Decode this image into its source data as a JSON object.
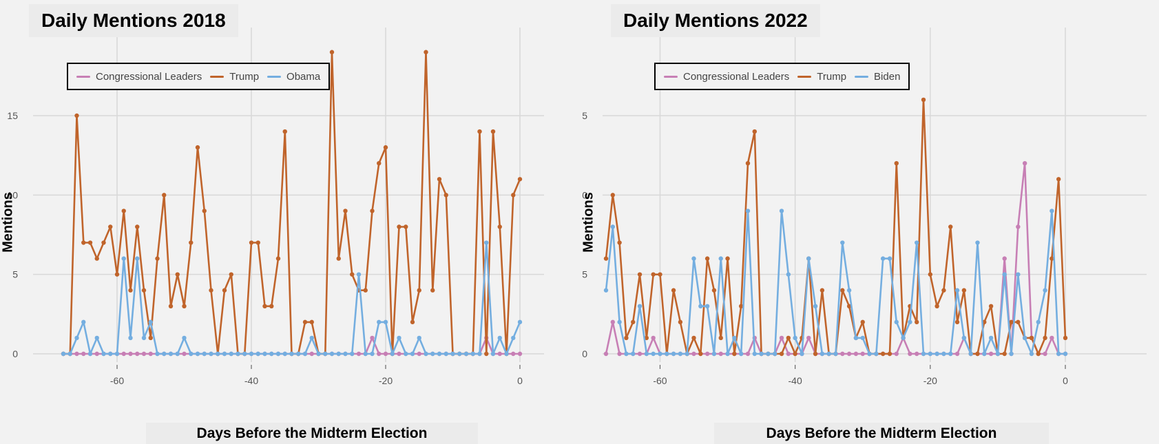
{
  "colors": {
    "congress": "#c77fb5",
    "trump": "#c0642b",
    "other": "#74aee0",
    "grid": "#d8d8d8"
  },
  "chart_data": [
    {
      "type": "line",
      "title": "Daily Mentions 2018",
      "xlabel": "Days Before the Midterm Election",
      "ylabel": "Mentions",
      "xlim": [
        -68,
        0
      ],
      "ylim": [
        0,
        19
      ],
      "xticks": [
        -60,
        -40,
        -20,
        0
      ],
      "yticks": [
        0,
        5,
        10,
        15
      ],
      "legend_position": "top-left",
      "x": [
        -68,
        -67,
        -66,
        -65,
        -64,
        -63,
        -62,
        -61,
        -60,
        -59,
        -58,
        -57,
        -56,
        -55,
        -54,
        -53,
        -52,
        -51,
        -50,
        -49,
        -48,
        -47,
        -46,
        -45,
        -44,
        -43,
        -42,
        -41,
        -40,
        -39,
        -38,
        -37,
        -36,
        -35,
        -34,
        -33,
        -32,
        -31,
        -30,
        -29,
        -28,
        -27,
        -26,
        -25,
        -24,
        -23,
        -22,
        -21,
        -20,
        -19,
        -18,
        -17,
        -16,
        -15,
        -14,
        -13,
        -12,
        -11,
        -10,
        -9,
        -8,
        -7,
        -6,
        -5,
        -4,
        -3,
        -2,
        -1,
        0
      ],
      "series": [
        {
          "name": "Congressional Leaders",
          "color_key": "congress",
          "values": [
            0,
            0,
            0,
            0,
            0,
            0,
            0,
            0,
            0,
            0,
            0,
            0,
            0,
            0,
            0,
            0,
            0,
            0,
            0,
            0,
            0,
            0,
            0,
            0,
            0,
            0,
            0,
            0,
            0,
            0,
            0,
            0,
            0,
            0,
            0,
            0,
            0,
            0,
            0,
            0,
            0,
            0,
            0,
            0,
            0,
            0,
            1,
            0,
            0,
            0,
            0,
            0,
            0,
            0,
            0,
            0,
            0,
            0,
            0,
            0,
            0,
            0,
            0,
            1,
            0,
            0,
            0,
            0,
            0
          ]
        },
        {
          "name": "Trump",
          "color_key": "trump",
          "values": [
            0,
            0,
            15,
            7,
            7,
            6,
            7,
            8,
            5,
            9,
            4,
            8,
            4,
            1,
            6,
            10,
            3,
            5,
            3,
            7,
            13,
            9,
            4,
            0,
            4,
            5,
            0,
            0,
            7,
            7,
            3,
            3,
            6,
            14,
            0,
            0,
            2,
            2,
            0,
            0,
            19,
            6,
            9,
            5,
            4,
            4,
            9,
            12,
            13,
            0,
            8,
            8,
            2,
            4,
            19,
            4,
            11,
            10,
            0,
            0,
            0,
            0,
            14,
            0,
            14,
            8,
            0,
            10,
            11
          ]
        },
        {
          "name": "Obama",
          "color_key": "other",
          "values": [
            0,
            0,
            1,
            2,
            0,
            1,
            0,
            0,
            0,
            6,
            1,
            6,
            1,
            2,
            0,
            0,
            0,
            0,
            1,
            0,
            0,
            0,
            0,
            0,
            0,
            0,
            0,
            0,
            0,
            0,
            0,
            0,
            0,
            0,
            0,
            0,
            0,
            1,
            0,
            0,
            0,
            0,
            0,
            0,
            5,
            0,
            0,
            2,
            2,
            0,
            1,
            0,
            0,
            1,
            0,
            0,
            0,
            0,
            0,
            0,
            0,
            0,
            0,
            7,
            0,
            1,
            0,
            1,
            2
          ]
        }
      ]
    },
    {
      "type": "line",
      "title": "Daily Mentions 2022",
      "xlabel": "Days Before the Midterm Election",
      "ylabel": "Mentions",
      "xlim": [
        -68,
        0
      ],
      "ylim": [
        0,
        19
      ],
      "xticks": [
        -60,
        -40,
        -20,
        0
      ],
      "yticks": [
        0,
        5,
        10,
        15
      ],
      "legend_position": "top-left",
      "x": [
        -68,
        -67,
        -66,
        -65,
        -64,
        -63,
        -62,
        -61,
        -60,
        -59,
        -58,
        -57,
        -56,
        -55,
        -54,
        -53,
        -52,
        -51,
        -50,
        -49,
        -48,
        -47,
        -46,
        -45,
        -44,
        -43,
        -42,
        -41,
        -40,
        -39,
        -38,
        -37,
        -36,
        -35,
        -34,
        -33,
        -32,
        -31,
        -30,
        -29,
        -28,
        -27,
        -26,
        -25,
        -24,
        -23,
        -22,
        -21,
        -20,
        -19,
        -18,
        -17,
        -16,
        -15,
        -14,
        -13,
        -12,
        -11,
        -10,
        -9,
        -8,
        -7,
        -6,
        -5,
        -4,
        -3,
        -2,
        -1,
        0
      ],
      "series": [
        {
          "name": "Congressional Leaders",
          "color_key": "congress",
          "values": [
            0,
            2,
            0,
            0,
            0,
            0,
            0,
            1,
            0,
            0,
            0,
            0,
            0,
            0,
            0,
            0,
            0,
            0,
            0,
            0,
            0,
            0,
            1,
            0,
            0,
            0,
            1,
            0,
            0,
            0,
            1,
            0,
            0,
            0,
            0,
            0,
            0,
            0,
            0,
            0,
            0,
            0,
            0,
            0,
            1,
            0,
            0,
            0,
            0,
            0,
            0,
            0,
            0,
            1,
            0,
            0,
            0,
            0,
            0,
            6,
            0,
            8,
            12,
            1,
            0,
            0,
            1,
            0,
            0
          ]
        },
        {
          "name": "Trump",
          "color_key": "trump",
          "values": [
            6,
            10,
            7,
            1,
            2,
            5,
            1,
            5,
            5,
            0,
            4,
            2,
            0,
            1,
            0,
            6,
            4,
            1,
            6,
            0,
            3,
            12,
            14,
            0,
            0,
            0,
            0,
            1,
            0,
            1,
            6,
            0,
            4,
            0,
            0,
            4,
            3,
            1,
            2,
            0,
            0,
            0,
            0,
            12,
            1,
            3,
            2,
            16,
            5,
            3,
            4,
            8,
            2,
            4,
            0,
            0,
            2,
            3,
            0,
            0,
            2,
            2,
            1,
            1,
            0,
            1,
            6,
            11,
            1
          ]
        },
        {
          "name": "Biden",
          "color_key": "other",
          "values": [
            4,
            8,
            2,
            0,
            0,
            3,
            0,
            0,
            0,
            0,
            0,
            0,
            0,
            6,
            3,
            3,
            0,
            6,
            0,
            1,
            0,
            9,
            0,
            0,
            0,
            0,
            9,
            5,
            1,
            0,
            6,
            3,
            0,
            0,
            0,
            7,
            4,
            1,
            1,
            0,
            0,
            6,
            6,
            2,
            1,
            2,
            7,
            0,
            0,
            0,
            0,
            0,
            4,
            1,
            0,
            7,
            0,
            1,
            0,
            5,
            0,
            5,
            1,
            0,
            2,
            4,
            9,
            0,
            0
          ]
        }
      ]
    }
  ]
}
